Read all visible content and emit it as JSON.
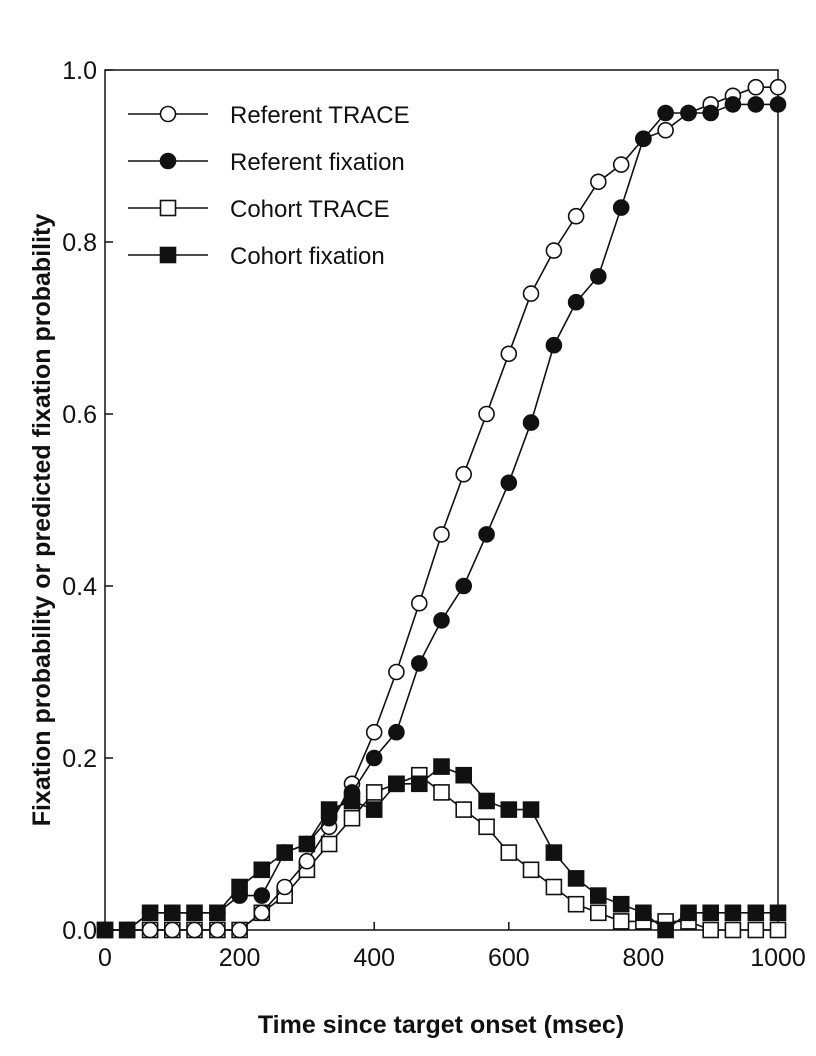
{
  "chart_data": {
    "type": "line",
    "title": "",
    "xlabel": "Time since target onset (msec)",
    "ylabel": "Fixation probability or predicted fixation probability",
    "xlim": [
      0,
      1000
    ],
    "ylim": [
      0,
      1.0
    ],
    "x_ticks": [
      0,
      200,
      400,
      600,
      800,
      1000
    ],
    "y_ticks": [
      0.0,
      0.2,
      0.4,
      0.6,
      0.8,
      1.0
    ],
    "x_tick_labels": [
      "0",
      "200",
      "400",
      "600",
      "800",
      "1000"
    ],
    "y_tick_labels": [
      "0.0",
      "0.2",
      "0.4",
      "0.6",
      "0.8",
      "1.0"
    ],
    "grid": false,
    "legend_position": "top-left",
    "x": [
      0,
      33,
      67,
      100,
      133,
      167,
      200,
      233,
      267,
      300,
      333,
      367,
      400,
      433,
      467,
      500,
      533,
      567,
      600,
      633,
      667,
      700,
      733,
      767,
      800,
      833,
      867,
      900,
      933,
      967,
      1000
    ],
    "series": [
      {
        "name": "Referent TRACE",
        "marker": "circle-open",
        "values": [
          0.0,
          0.0,
          0.0,
          0.0,
          0.0,
          0.0,
          0.0,
          0.02,
          0.05,
          0.08,
          0.12,
          0.17,
          0.23,
          0.3,
          0.38,
          0.46,
          0.53,
          0.6,
          0.67,
          0.74,
          0.79,
          0.83,
          0.87,
          0.89,
          0.92,
          0.93,
          0.95,
          0.96,
          0.97,
          0.98,
          0.98
        ]
      },
      {
        "name": "Referent fixation",
        "marker": "circle-filled",
        "values": [
          0.0,
          0.0,
          0.02,
          0.02,
          0.02,
          0.02,
          0.04,
          0.04,
          0.09,
          0.1,
          0.13,
          0.16,
          0.2,
          0.23,
          0.31,
          0.36,
          0.4,
          0.46,
          0.52,
          0.59,
          0.68,
          0.73,
          0.76,
          0.84,
          0.92,
          0.95,
          0.95,
          0.95,
          0.96,
          0.96,
          0.96
        ]
      },
      {
        "name": "Cohort TRACE",
        "marker": "square-open",
        "values": [
          0.0,
          0.0,
          0.0,
          0.0,
          0.0,
          0.0,
          0.0,
          0.02,
          0.04,
          0.07,
          0.1,
          0.13,
          0.16,
          0.17,
          0.18,
          0.16,
          0.14,
          0.12,
          0.09,
          0.07,
          0.05,
          0.03,
          0.02,
          0.01,
          0.01,
          0.01,
          0.01,
          0.0,
          0.0,
          0.0,
          0.0
        ]
      },
      {
        "name": "Cohort fixation",
        "marker": "square-filled",
        "values": [
          0.0,
          0.0,
          0.02,
          0.02,
          0.02,
          0.02,
          0.05,
          0.07,
          0.09,
          0.1,
          0.14,
          0.15,
          0.14,
          0.17,
          0.17,
          0.19,
          0.18,
          0.15,
          0.14,
          0.14,
          0.09,
          0.06,
          0.04,
          0.03,
          0.02,
          0.0,
          0.02,
          0.02,
          0.02,
          0.02,
          0.02
        ]
      }
    ]
  }
}
